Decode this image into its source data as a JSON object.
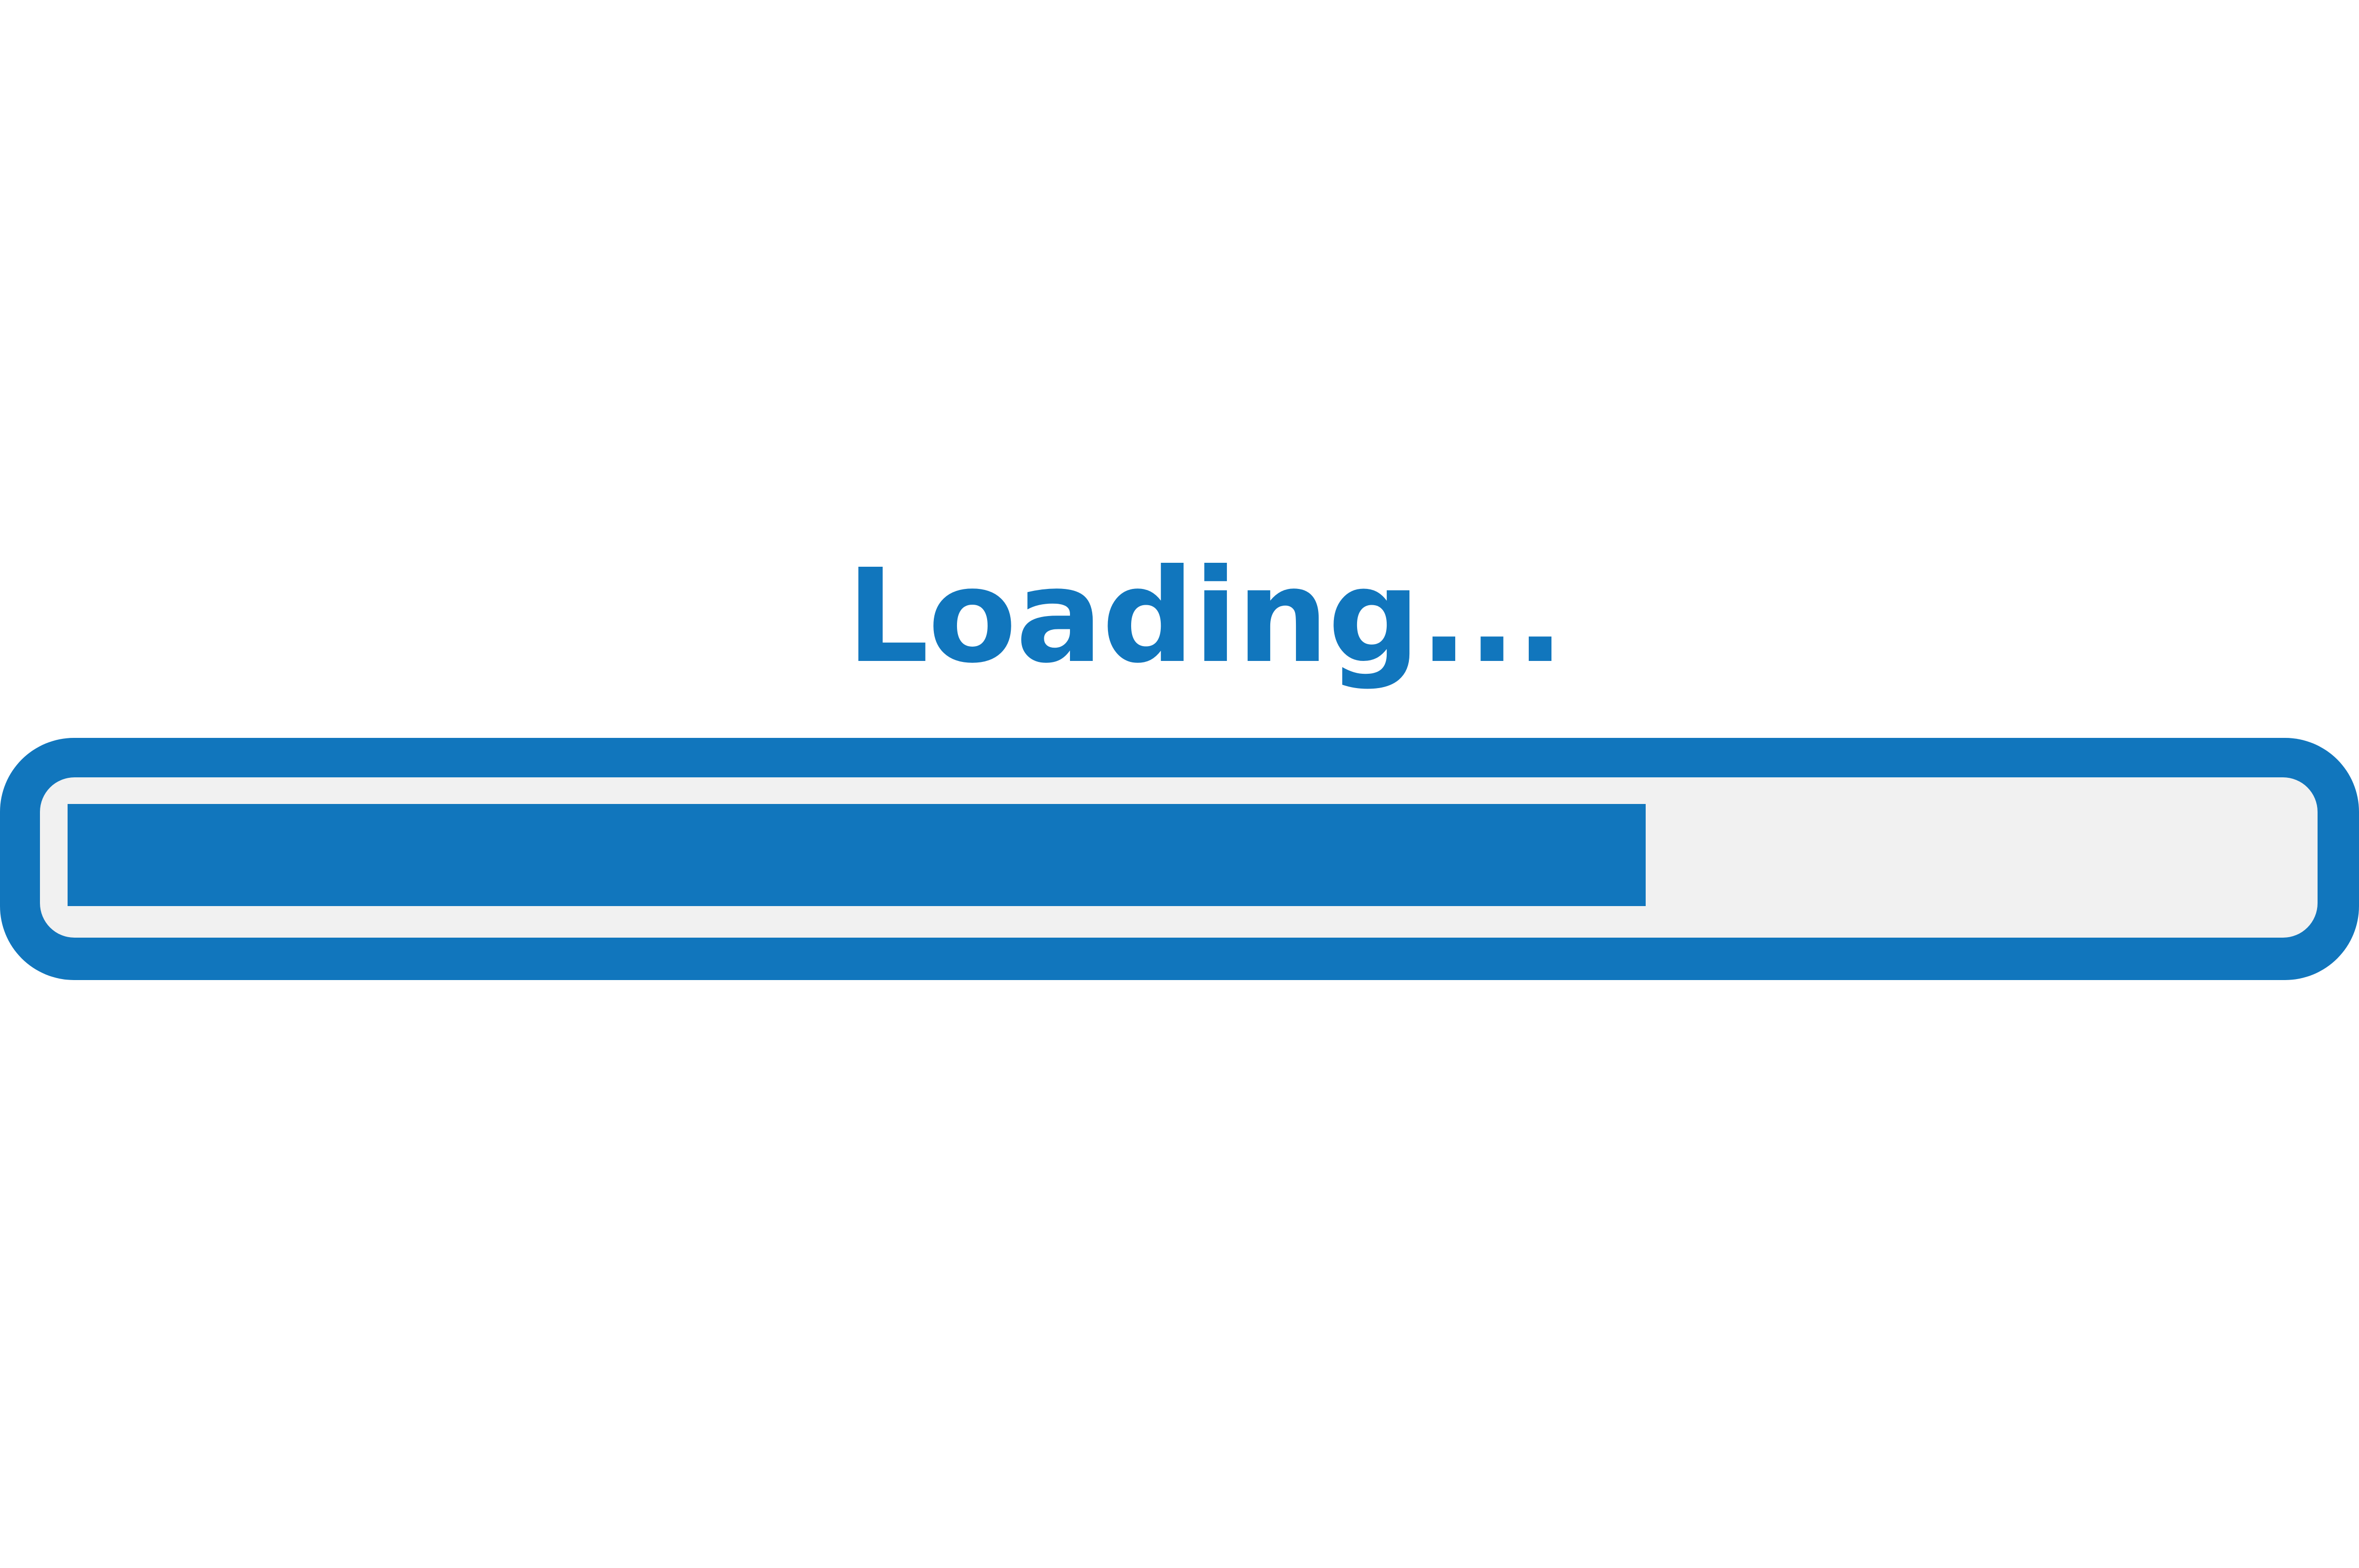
{
  "status": {
    "label": "Loading..."
  },
  "progress": {
    "value_percent": 71,
    "color": "#1176bd",
    "track_color": "#f1f1f1"
  }
}
